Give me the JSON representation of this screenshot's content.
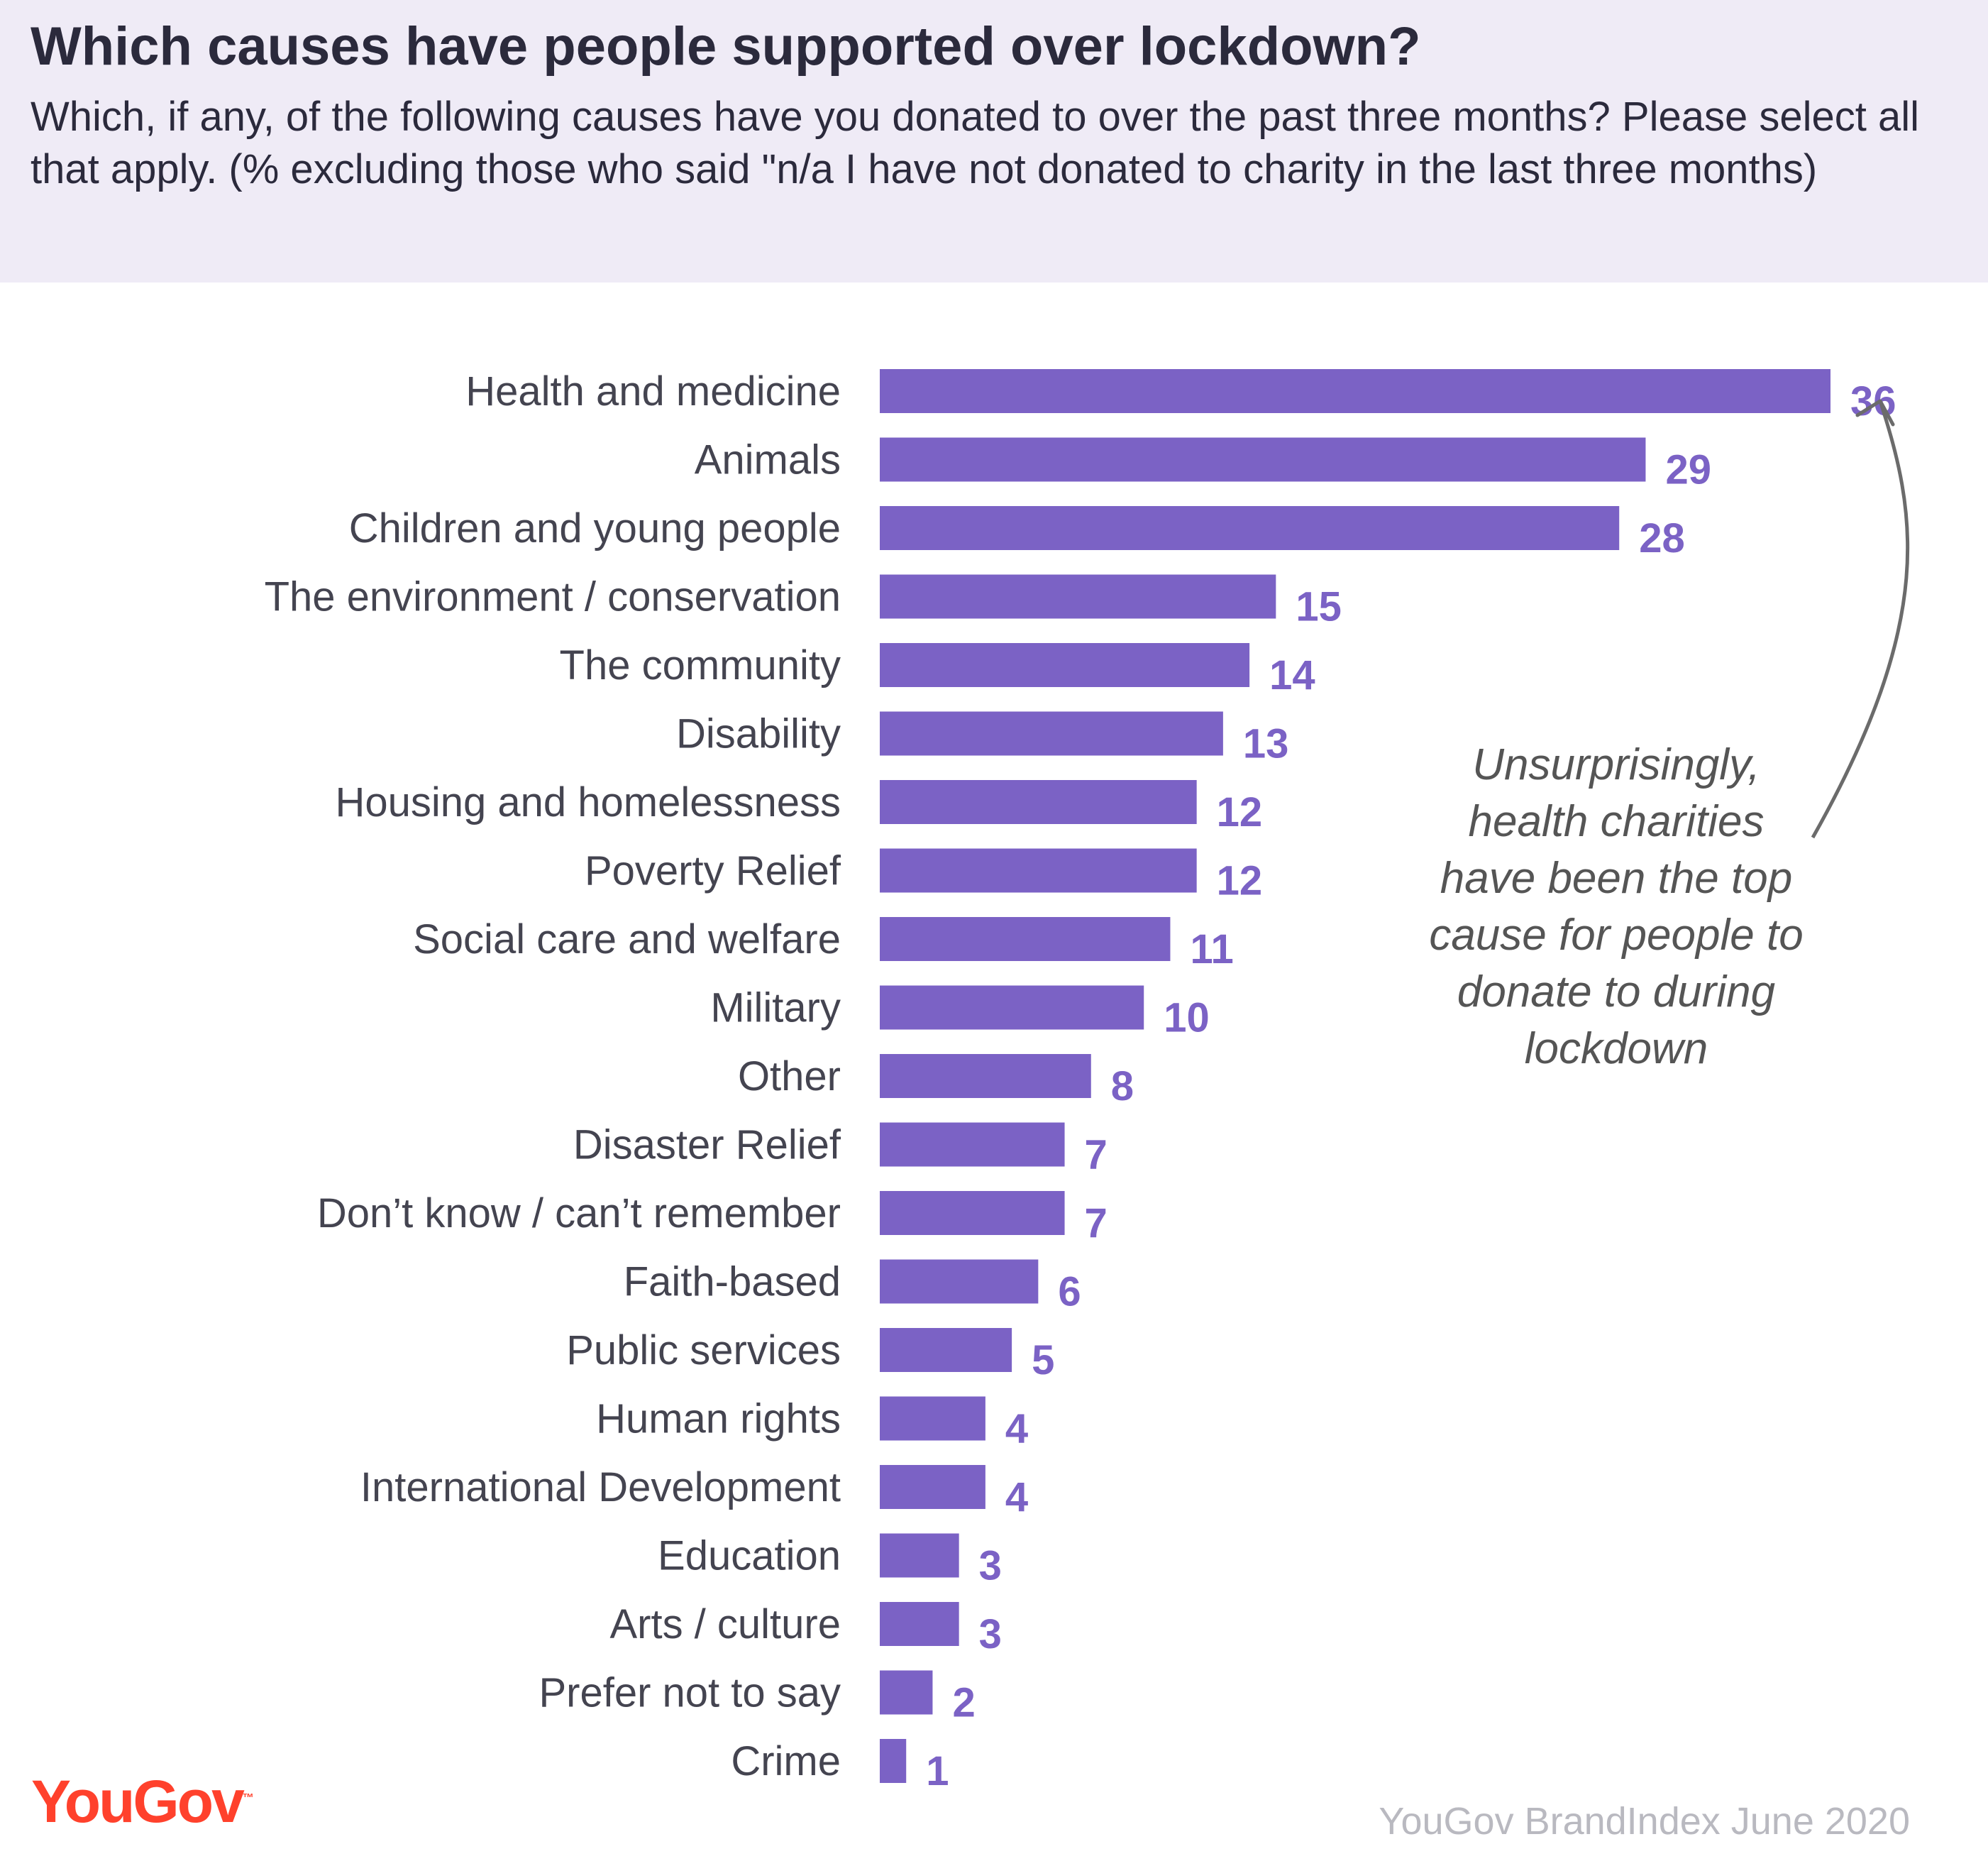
{
  "header": {
    "title": "Which causes have people supported  over lockdown?",
    "subtitle": "Which, if any, of the following causes have you donated to over the past three months? Please select all that apply. (% excluding those who said \"n/a I have not donated to charity in the last three months)"
  },
  "chart_data": {
    "type": "bar",
    "orientation": "horizontal",
    "title": "Which causes have people supported  over lockdown?",
    "categories": [
      "Health and medicine",
      "Animals",
      "Children and young people",
      "The environment / conservation",
      "The community",
      "Disability",
      "Housing and homelessness",
      "Poverty Relief",
      "Social care and welfare",
      "Military",
      "Other",
      "Disaster Relief",
      "Don’t know / can’t remember",
      "Faith-based",
      "Public services",
      "Human rights",
      "International Development",
      "Education",
      "Arts / culture",
      "Prefer not to say",
      "Crime"
    ],
    "values": [
      36,
      29,
      28,
      15,
      14,
      13,
      12,
      12,
      11,
      10,
      8,
      7,
      7,
      6,
      5,
      4,
      4,
      3,
      3,
      2,
      1
    ],
    "bar_color": "#7b62c5",
    "value_label_color": "#7b62c5",
    "grid": false,
    "xlim": [
      0,
      36
    ]
  },
  "annotation": {
    "lines": [
      "Unsurprisingly,",
      "health charities",
      "have been the top",
      "cause for people to",
      "donate to during",
      "lockdown"
    ]
  },
  "footer": {
    "logo_text": "YouGov",
    "logo_tm": "™",
    "logo_color": "#ff412c",
    "source": "YouGov BrandIndex June 2020"
  }
}
